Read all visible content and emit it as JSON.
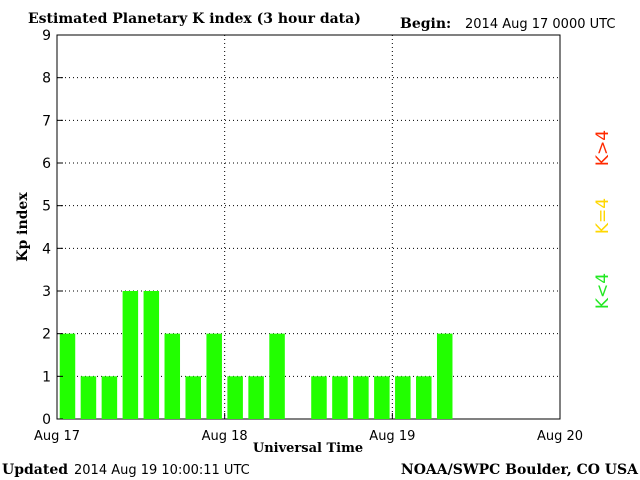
{
  "header": {
    "title": "Estimated Planetary K index (3 hour data)",
    "begin_label": "Begin:",
    "begin_value": "2014 Aug 17 0000 UTC"
  },
  "footer": {
    "updated_label": "Updated",
    "updated_value": "2014 Aug 19 10:00:11 UTC",
    "source": "NOAA/SWPC Boulder, CO USA"
  },
  "legend": {
    "items": [
      {
        "label": "K>4",
        "color": "#ff2a00"
      },
      {
        "label": "K=4",
        "color": "#ffd700"
      },
      {
        "label": "K<4",
        "color": "#22e822"
      }
    ]
  },
  "chart_data": {
    "type": "bar",
    "title": "Estimated Planetary K index (3 hour data)",
    "xlabel": "Universal Time",
    "ylabel": "Kp index",
    "ylim": [
      0,
      9
    ],
    "yticks": [
      0,
      1,
      2,
      3,
      4,
      5,
      6,
      7,
      8,
      9
    ],
    "xlim": [
      "2014-08-17T00:00",
      "2014-08-20T00:00"
    ],
    "xticks": [
      {
        "label": "Aug 17",
        "value": "2014-08-17T00:00"
      },
      {
        "label": "Aug 18",
        "value": "2014-08-18T00:00"
      },
      {
        "label": "Aug 19",
        "value": "2014-08-19T00:00"
      },
      {
        "label": "Aug 20",
        "value": "2014-08-20T00:00"
      }
    ],
    "bar_interval_hours": 3,
    "grid": true,
    "bar_color": "#22ff00",
    "bars": [
      {
        "start": "2014-08-17T00:00",
        "value": 2
      },
      {
        "start": "2014-08-17T03:00",
        "value": 1
      },
      {
        "start": "2014-08-17T06:00",
        "value": 1
      },
      {
        "start": "2014-08-17T09:00",
        "value": 3
      },
      {
        "start": "2014-08-17T12:00",
        "value": 3
      },
      {
        "start": "2014-08-17T15:00",
        "value": 2
      },
      {
        "start": "2014-08-17T18:00",
        "value": 1
      },
      {
        "start": "2014-08-17T21:00",
        "value": 2
      },
      {
        "start": "2014-08-18T00:00",
        "value": 1
      },
      {
        "start": "2014-08-18T03:00",
        "value": 1
      },
      {
        "start": "2014-08-18T06:00",
        "value": 2
      },
      {
        "start": "2014-08-18T12:00",
        "value": 1
      },
      {
        "start": "2014-08-18T15:00",
        "value": 1
      },
      {
        "start": "2014-08-18T18:00",
        "value": 1
      },
      {
        "start": "2014-08-18T21:00",
        "value": 1
      },
      {
        "start": "2014-08-19T00:00",
        "value": 1
      },
      {
        "start": "2014-08-19T03:00",
        "value": 1
      },
      {
        "start": "2014-08-19T06:00",
        "value": 2
      }
    ]
  }
}
